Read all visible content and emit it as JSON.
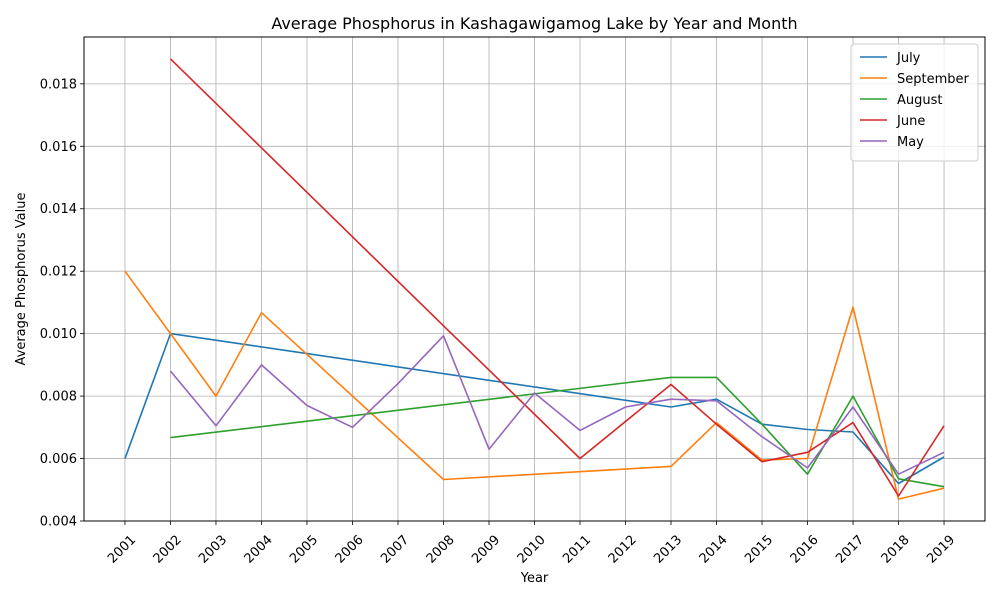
{
  "chart_data": {
    "type": "line",
    "title": "Average Phosphorus in Kashagawigamog Lake by Year and Month",
    "xlabel": "Year",
    "ylabel": "Average Phosphorus Value",
    "x_ticks": [
      2001,
      2002,
      2003,
      2004,
      2005,
      2006,
      2007,
      2008,
      2009,
      2010,
      2011,
      2012,
      2013,
      2014,
      2015,
      2016,
      2017,
      2018,
      2019
    ],
    "xlim": [
      2000.1,
      2019.9
    ],
    "ylim": [
      0.004,
      0.0195
    ],
    "y_ticks": [
      0.004,
      0.006,
      0.008,
      0.01,
      0.012,
      0.014,
      0.016,
      0.018
    ],
    "y_tick_labels": [
      "0.004",
      "0.006",
      "0.008",
      "0.010",
      "0.012",
      "0.014",
      "0.016",
      "0.018"
    ],
    "grid": true,
    "legend_position": "top-right",
    "series": [
      {
        "name": "July",
        "color": "#1f77b4",
        "x": [
          2001,
          2002,
          2013,
          2014,
          2015,
          2016,
          2017,
          2018,
          2019
        ],
        "y": [
          0.006,
          0.01,
          0.00765,
          0.0079,
          0.0071,
          0.00693,
          0.00685,
          0.0052,
          0.00605
        ]
      },
      {
        "name": "September",
        "color": "#ff7f0e",
        "x": [
          2001,
          2002,
          2003,
          2004,
          2008,
          2013,
          2014,
          2015,
          2016,
          2017,
          2018,
          2019
        ],
        "y": [
          0.012,
          0.01,
          0.008,
          0.01067,
          0.00533,
          0.00575,
          0.00715,
          0.00595,
          0.006,
          0.01085,
          0.0047,
          0.00505
        ]
      },
      {
        "name": "August",
        "color": "#2ca02c",
        "x": [
          2002,
          2013,
          2014,
          2015,
          2016,
          2017,
          2018,
          2019
        ],
        "y": [
          0.00667,
          0.0086,
          0.0086,
          0.0071,
          0.0055,
          0.008,
          0.00535,
          0.0051
        ]
      },
      {
        "name": "June",
        "color": "#d62728",
        "x": [
          2002,
          2008,
          2011,
          2013,
          2014,
          2015,
          2016,
          2017,
          2018,
          2019
        ],
        "y": [
          0.0188,
          0.01025,
          0.006,
          0.00837,
          0.0071,
          0.0059,
          0.0062,
          0.00715,
          0.0048,
          0.00705
        ]
      },
      {
        "name": "May",
        "color": "#9467bd",
        "x": [
          2002,
          2003,
          2004,
          2005,
          2006,
          2007,
          2008,
          2009,
          2010,
          2011,
          2012,
          2013,
          2014,
          2015,
          2016,
          2017,
          2018,
          2019
        ],
        "y": [
          0.0088,
          0.00705,
          0.009,
          0.0077,
          0.007,
          0.0084,
          0.00993,
          0.0063,
          0.0081,
          0.0069,
          0.00765,
          0.0079,
          0.00785,
          0.0067,
          0.0057,
          0.00765,
          0.0055,
          0.0062
        ]
      }
    ]
  }
}
